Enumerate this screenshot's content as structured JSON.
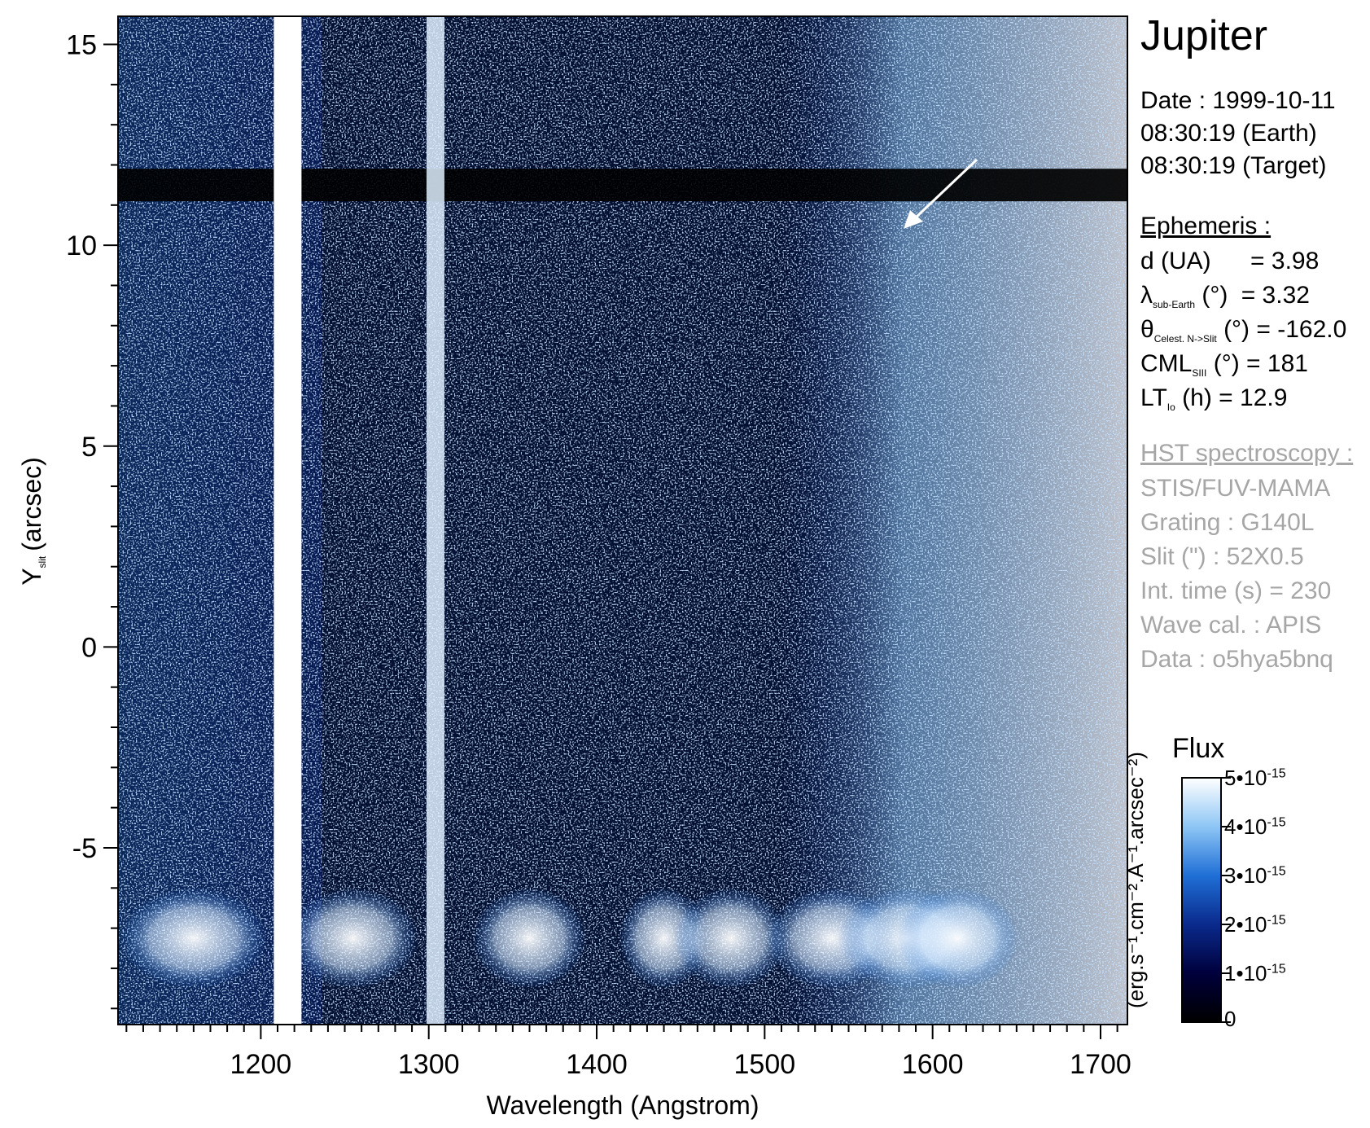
{
  "panel": {
    "title": "Jupiter",
    "date_line": "Date : 1999-10-11",
    "earth_time": "08:30:19 (Earth)",
    "target_time": "08:30:19 (Target)",
    "ephemeris_header": "Ephemeris :",
    "ephemeris": [
      {
        "name": "d (UA)",
        "sub": "",
        "rest": "",
        "value": "= 3.98"
      },
      {
        "name": "λ",
        "sub": "sub-Earth",
        "rest": "(°)",
        "value": "= 3.32"
      },
      {
        "name": "θ",
        "sub": "Celest. N->Slit",
        "rest": "(°)",
        "value": "= -162.0"
      },
      {
        "name": "CML",
        "sub": "SIII",
        "rest": "(°)",
        "value": "= 181"
      },
      {
        "name": "LT",
        "sub": "Io",
        "rest": "(h)",
        "value": "= 12.9"
      }
    ],
    "hst_header": "HST spectroscopy :",
    "hst": [
      "STIS/FUV-MAMA",
      "Grating : G140L",
      "Slit (\") : 52X0.5",
      "Int. time (s) = 230",
      "Wave cal. : APIS",
      "Data : o5hya5bnq"
    ]
  },
  "colorbar": {
    "title": "Flux",
    "unit": "(erg.s⁻¹.cm⁻².A⁻¹.arcsec⁻²)",
    "ticks": [
      {
        "base": "5•10",
        "exp": "-15"
      },
      {
        "base": "4•10",
        "exp": "-15"
      },
      {
        "base": "3•10",
        "exp": "-15"
      },
      {
        "base": "2•10",
        "exp": "-15"
      },
      {
        "base": "1•10",
        "exp": "-15"
      },
      {
        "base": "0",
        "exp": ""
      }
    ],
    "colors": [
      "#000000",
      "#00003c",
      "#0a2a8c",
      "#1f6fd6",
      "#8ec6f5",
      "#ffffff"
    ]
  },
  "chart_data": {
    "type": "heatmap",
    "xlabel": "Wavelength (Angstrom)",
    "ylabel_main": "Y",
    "ylabel_sub": "slit",
    "ylabel_rest": "(arcsec)",
    "xlim": [
      1115,
      1716
    ],
    "ylim": [
      -9.4,
      15.7
    ],
    "x_ticks": [
      1200,
      1300,
      1400,
      1500,
      1600,
      1700
    ],
    "x_tick_labels": [
      "1200",
      "1300",
      "1400",
      "1500",
      "1600",
      "1700"
    ],
    "y_ticks": [
      15,
      10,
      5,
      0,
      -5
    ],
    "y_tick_labels": [
      "15",
      "10",
      "5",
      "0",
      "-5"
    ],
    "features": {
      "emission_lines_angstrom": [
        1216,
        1304
      ],
      "bright_band_y_range": [
        -8.5,
        -6.0
      ],
      "dark_horizontal_gap_y": 11.5,
      "bright_continuum_start_angstrom": 1550
    },
    "colorbar_range": [
      0,
      5e-15
    ]
  }
}
